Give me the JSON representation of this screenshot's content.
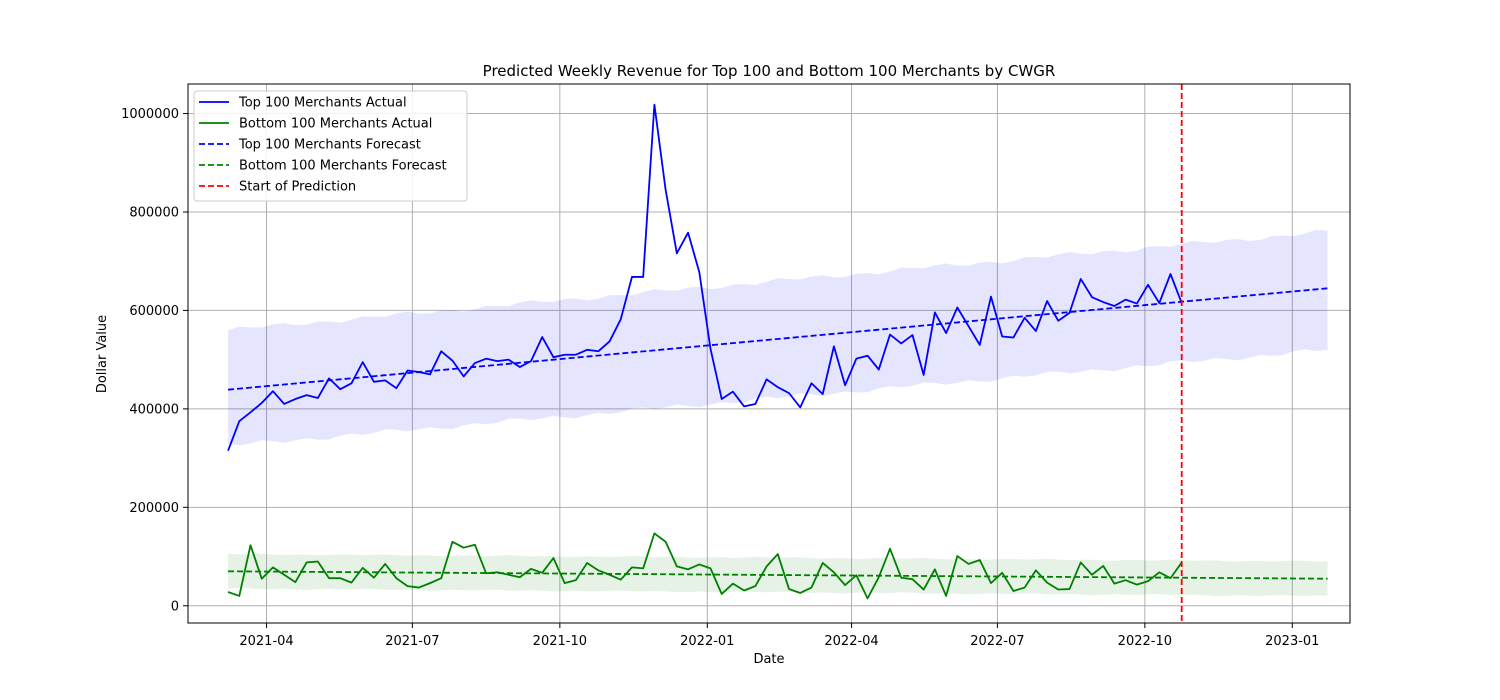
{
  "chart_data": {
    "type": "line",
    "title": "Predicted Weekly Revenue for Top 100 and Bottom 100 Merchants by CWGR",
    "xlabel": "Date",
    "ylabel": "Dollar Value",
    "x_axis": {
      "type": "date",
      "range": [
        "2021-02-11",
        "2023-02-06"
      ],
      "ticks": [
        "2021-04-01",
        "2021-07-01",
        "2021-10-01",
        "2022-01-01",
        "2022-04-01",
        "2022-07-01",
        "2022-10-01",
        "2023-01-01"
      ],
      "tick_labels": [
        "2021-04",
        "2021-07",
        "2021-10",
        "2022-01",
        "2022-04",
        "2022-07",
        "2022-10",
        "2023-01"
      ]
    },
    "y_axis": {
      "range": [
        -35000,
        1060000
      ],
      "ticks": [
        0,
        200000,
        400000,
        600000,
        800000,
        1000000
      ],
      "tick_labels": [
        "0",
        "200000",
        "400000",
        "600000",
        "800000",
        "1000000"
      ]
    },
    "grid": true,
    "legend_position": "top-left",
    "start_of_prediction": "2022-10-24",
    "actual_dates": {
      "start": "2021-03-08",
      "interval_days": 7,
      "count": 86
    },
    "forecast_dates": {
      "start": "2021-03-08",
      "interval_days": 7,
      "count": 99
    },
    "series": [
      {
        "name": "Top 100 Merchants Actual",
        "style": "solid",
        "color": "#0000ff",
        "values": [
          315000,
          375000,
          393000,
          412000,
          436000,
          410000,
          420000,
          428000,
          422000,
          462000,
          440000,
          452000,
          495000,
          455000,
          458000,
          442000,
          478000,
          475000,
          470000,
          517000,
          498000,
          466000,
          493000,
          502000,
          497000,
          500000,
          485000,
          497000,
          546000,
          505000,
          510000,
          510000,
          520000,
          517000,
          537000,
          582000,
          668000,
          668000,
          1018000,
          845000,
          716000,
          758000,
          678000,
          522000,
          420000,
          435000,
          405000,
          410000,
          460000,
          444000,
          432000,
          403000,
          452000,
          430000,
          527000,
          448000,
          502000,
          508000,
          480000,
          551000,
          533000,
          550000,
          469000,
          596000,
          554000,
          606000,
          568000,
          530000,
          628000,
          547000,
          545000,
          585000,
          558000,
          619000,
          579000,
          595000,
          664000,
          627000,
          617000,
          609000,
          622000,
          614000,
          652000,
          615000,
          674000,
          615000
        ]
      },
      {
        "name": "Bottom 100 Merchants Actual",
        "style": "solid",
        "color": "#008000",
        "values": [
          28000,
          20000,
          123000,
          55000,
          78000,
          63000,
          48000,
          88000,
          90000,
          56000,
          56000,
          47000,
          77000,
          57000,
          85000,
          56000,
          40000,
          37000,
          46000,
          56000,
          130000,
          118000,
          124000,
          66000,
          68000,
          63000,
          58000,
          75000,
          67000,
          97000,
          46000,
          52000,
          87000,
          72000,
          63000,
          53000,
          78000,
          76000,
          147000,
          130000,
          80000,
          74000,
          84000,
          76000,
          24000,
          45000,
          31000,
          40000,
          80000,
          105000,
          34000,
          26000,
          37000,
          87000,
          68000,
          42000,
          62000,
          15000,
          58000,
          116000,
          57000,
          54000,
          33000,
          74000,
          20000,
          101000,
          85000,
          93000,
          46000,
          67000,
          30000,
          37000,
          72000,
          47000,
          33000,
          34000,
          88000,
          63000,
          81000,
          45000,
          52000,
          43000,
          50000,
          68000,
          56000,
          88000
        ]
      },
      {
        "name": "Top 100 Merchants Forecast",
        "style": "dashed",
        "color": "#0000ff",
        "linear": [
          439000,
          645000
        ]
      },
      {
        "name": "Bottom 100 Merchants Forecast",
        "style": "dashed",
        "color": "#008000",
        "linear": [
          70000,
          55000
        ]
      },
      {
        "name": "Start of Prediction",
        "style": "dashed",
        "color": "#ff0000"
      }
    ],
    "confidence_bands": [
      {
        "series": "Top 100 Merchants Forecast",
        "color": "#0000ff",
        "opacity": 0.1,
        "lower_linear": [
          325000,
          520000
        ],
        "upper_linear": [
          560000,
          760000
        ]
      },
      {
        "series": "Bottom 100 Merchants Forecast",
        "color": "#008000",
        "opacity": 0.1,
        "lower_linear": [
          35000,
          20000
        ],
        "upper_linear": [
          105000,
          90000
        ]
      }
    ]
  }
}
